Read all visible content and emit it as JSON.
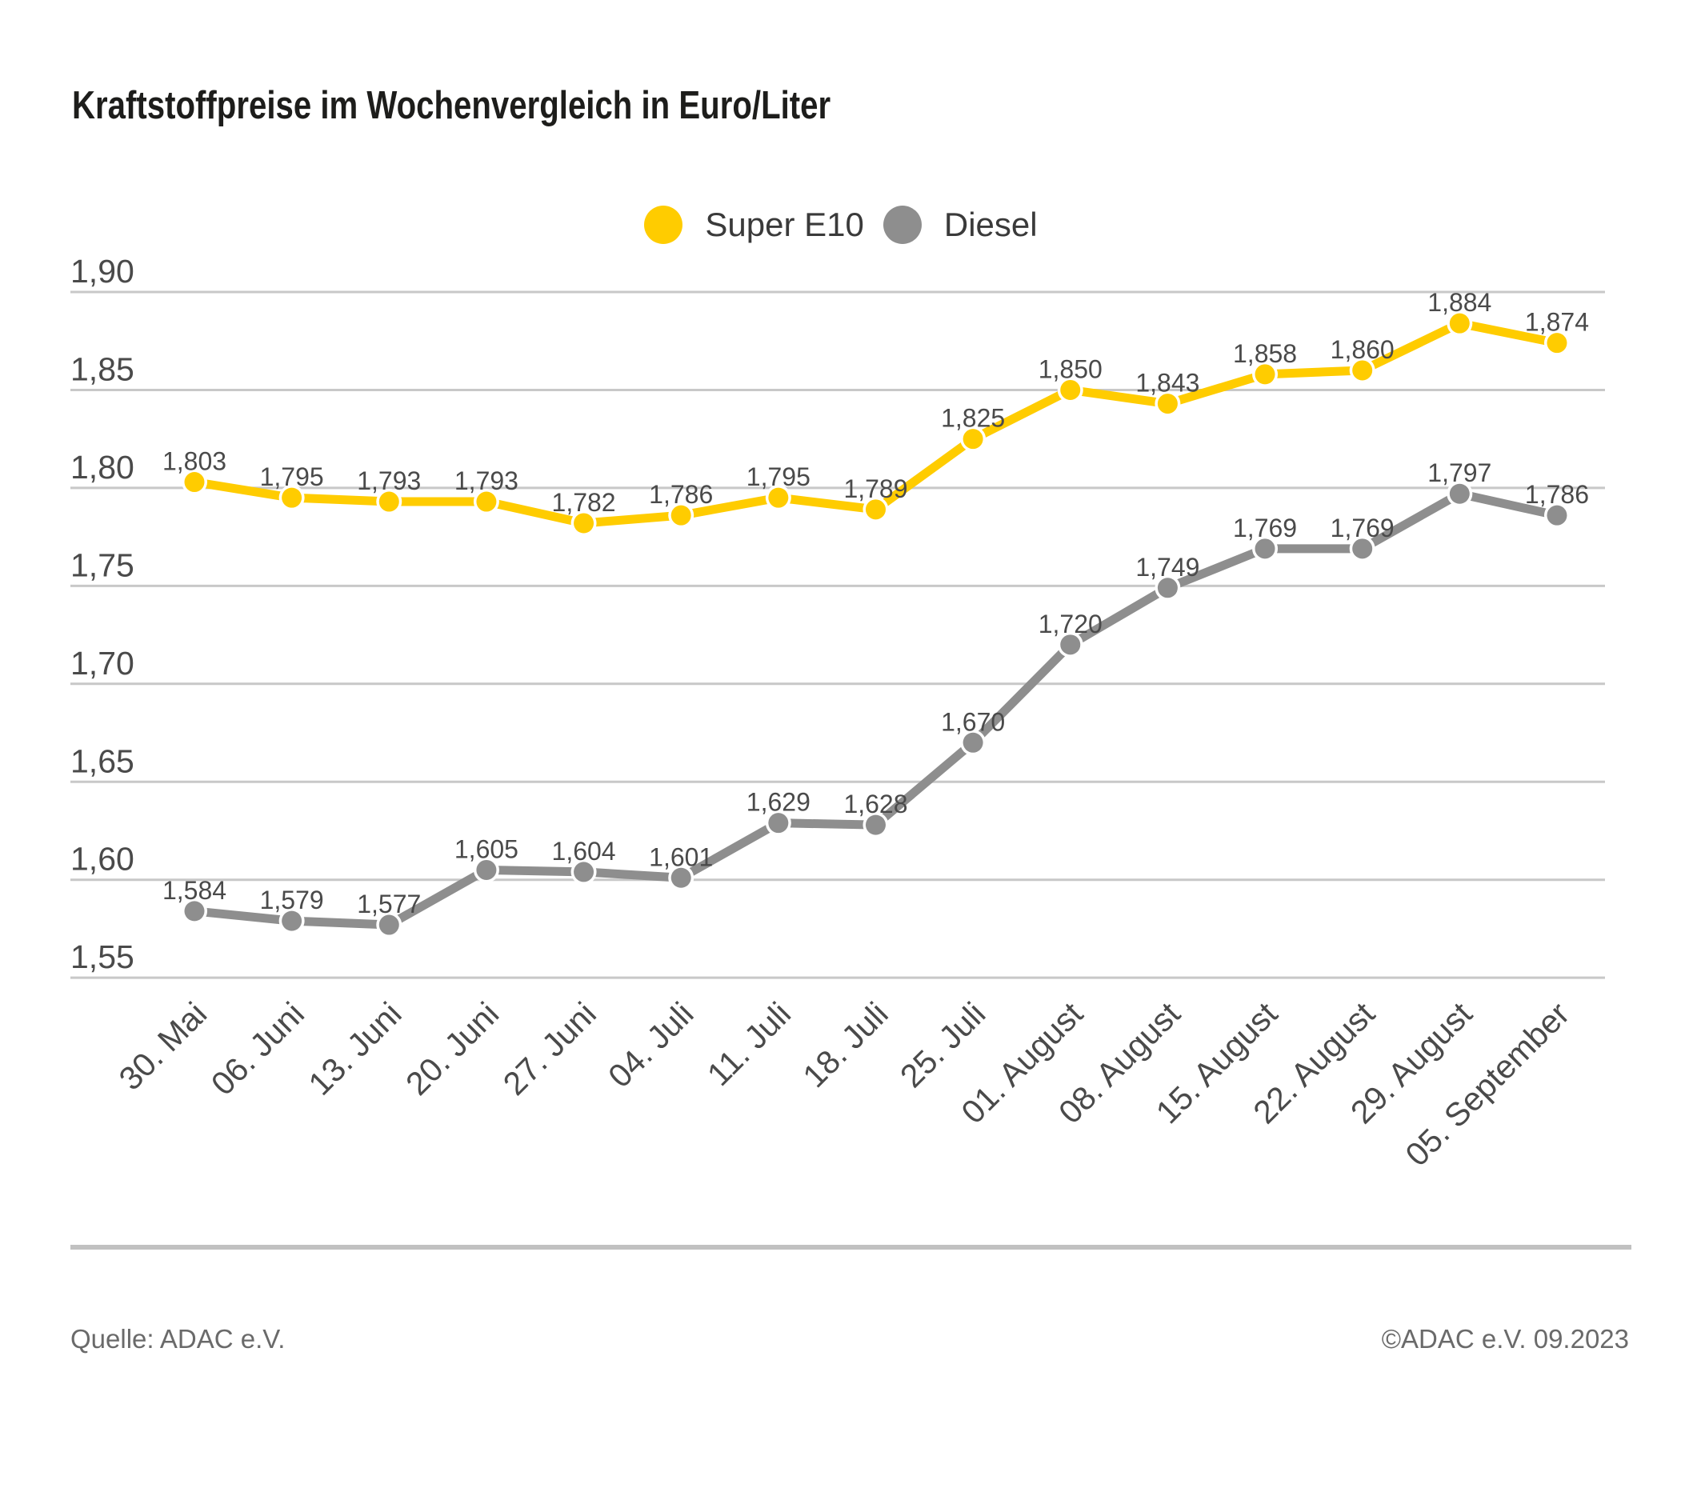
{
  "title": "Kraftstoffpreise im Wochenvergleich in Euro/Liter",
  "legend": [
    {
      "label": "Super E10",
      "color": "#FFCC00"
    },
    {
      "label": "Diesel",
      "color": "#8E8E8E"
    }
  ],
  "footer": {
    "source": "Quelle: ADAC e.V.",
    "copyright": "©ADAC e.V. 09.2023"
  },
  "colors": {
    "super_e10": "#FFCC00",
    "diesel": "#8E8E8E",
    "gridline": "#c8c8c8",
    "label_text": "#4a4a4a",
    "title_text": "#1d1d1b",
    "footer_text": "#6a6a6a"
  },
  "chart_data": {
    "type": "line",
    "title": "Kraftstoffpreise im Wochenvergleich in Euro/Liter",
    "categories": [
      "30. Mai",
      "06. Juni",
      "13. Juni",
      "20. Juni",
      "27. Juni",
      "04. Juli",
      "11. Juli",
      "18. Juli",
      "25. Juli",
      "01. August",
      "08. August",
      "15. August",
      "22. August",
      "29. August",
      "05. September"
    ],
    "series": [
      {
        "name": "Super E10",
        "color": "#FFCC00",
        "values": [
          1.803,
          1.795,
          1.793,
          1.793,
          1.782,
          1.786,
          1.795,
          1.789,
          1.825,
          1.85,
          1.843,
          1.858,
          1.86,
          1.884,
          1.874
        ]
      },
      {
        "name": "Diesel",
        "color": "#8E8E8E",
        "values": [
          1.584,
          1.579,
          1.577,
          1.605,
          1.604,
          1.601,
          1.629,
          1.628,
          1.67,
          1.72,
          1.749,
          1.769,
          1.769,
          1.797,
          1.786
        ]
      }
    ],
    "ylabel": "Euro/Liter",
    "ylim": [
      1.55,
      1.9
    ],
    "ytick_step": 0.05,
    "ytick_labels": [
      "1,55",
      "1,60",
      "1,65",
      "1,70",
      "1,75",
      "1,80",
      "1,85",
      "1,90"
    ],
    "grid": "horizontal",
    "legend_position": "top-center",
    "decimal_separator": ","
  }
}
